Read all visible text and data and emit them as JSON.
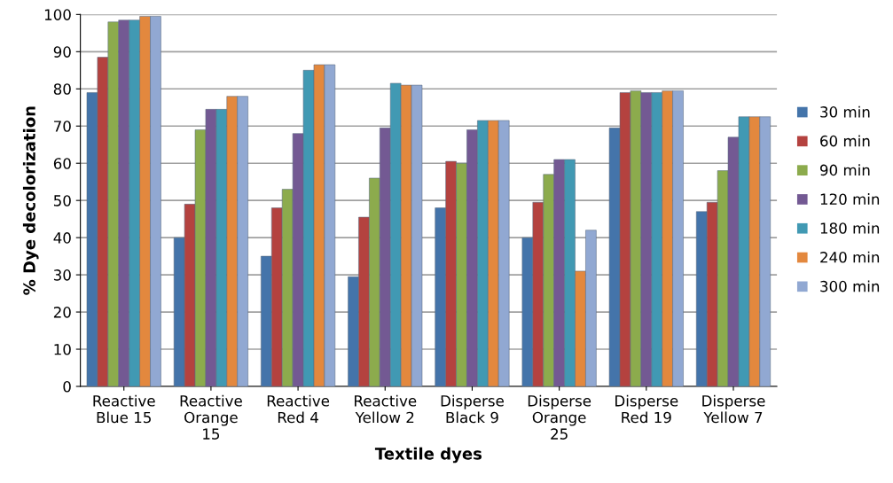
{
  "chart_data": {
    "type": "bar",
    "xlabel": "Textile dyes",
    "ylabel": "% Dye decolorization",
    "categories": [
      "Reactive\nBlue 15",
      "Reactive\nOrange\n15",
      "Reactive\nRed 4",
      "Reactive\nYellow 2",
      "Disperse\nBlack 9",
      "Disperse\nOrange\n25",
      "Disperse\nRed 19",
      "Disperse\nYellow 7"
    ],
    "series": [
      {
        "name": "30 min",
        "color": "#4474aa",
        "values": [
          79,
          40,
          35,
          29.5,
          48,
          40,
          69.5,
          47
        ]
      },
      {
        "name": "60 min",
        "color": "#b4423f",
        "values": [
          88.5,
          49,
          48,
          45.5,
          60.5,
          49.5,
          79,
          49.5
        ]
      },
      {
        "name": "90 min",
        "color": "#8cab4d",
        "values": [
          98,
          69,
          53,
          56,
          60,
          57,
          79.5,
          58
        ]
      },
      {
        "name": "120 min",
        "color": "#735993",
        "values": [
          98.5,
          74.5,
          68,
          69.5,
          69,
          61,
          79,
          67
        ]
      },
      {
        "name": "180 min",
        "color": "#4199b3",
        "values": [
          98.5,
          74.5,
          85,
          81.5,
          71.5,
          61,
          79,
          72.5
        ]
      },
      {
        "name": "240 min",
        "color": "#e3883e",
        "values": [
          99.5,
          78,
          86.5,
          81,
          71.5,
          31,
          79.5,
          72.5
        ]
      },
      {
        "name": "300 min",
        "color": "#91a8d2",
        "values": [
          99.5,
          78,
          86.5,
          81,
          71.5,
          42,
          79.5,
          72.5
        ]
      }
    ],
    "ylim": [
      0,
      100
    ],
    "yticks": [
      0,
      10,
      20,
      30,
      40,
      50,
      60,
      70,
      80,
      90,
      100
    ],
    "grid": "y",
    "legend": "right"
  }
}
